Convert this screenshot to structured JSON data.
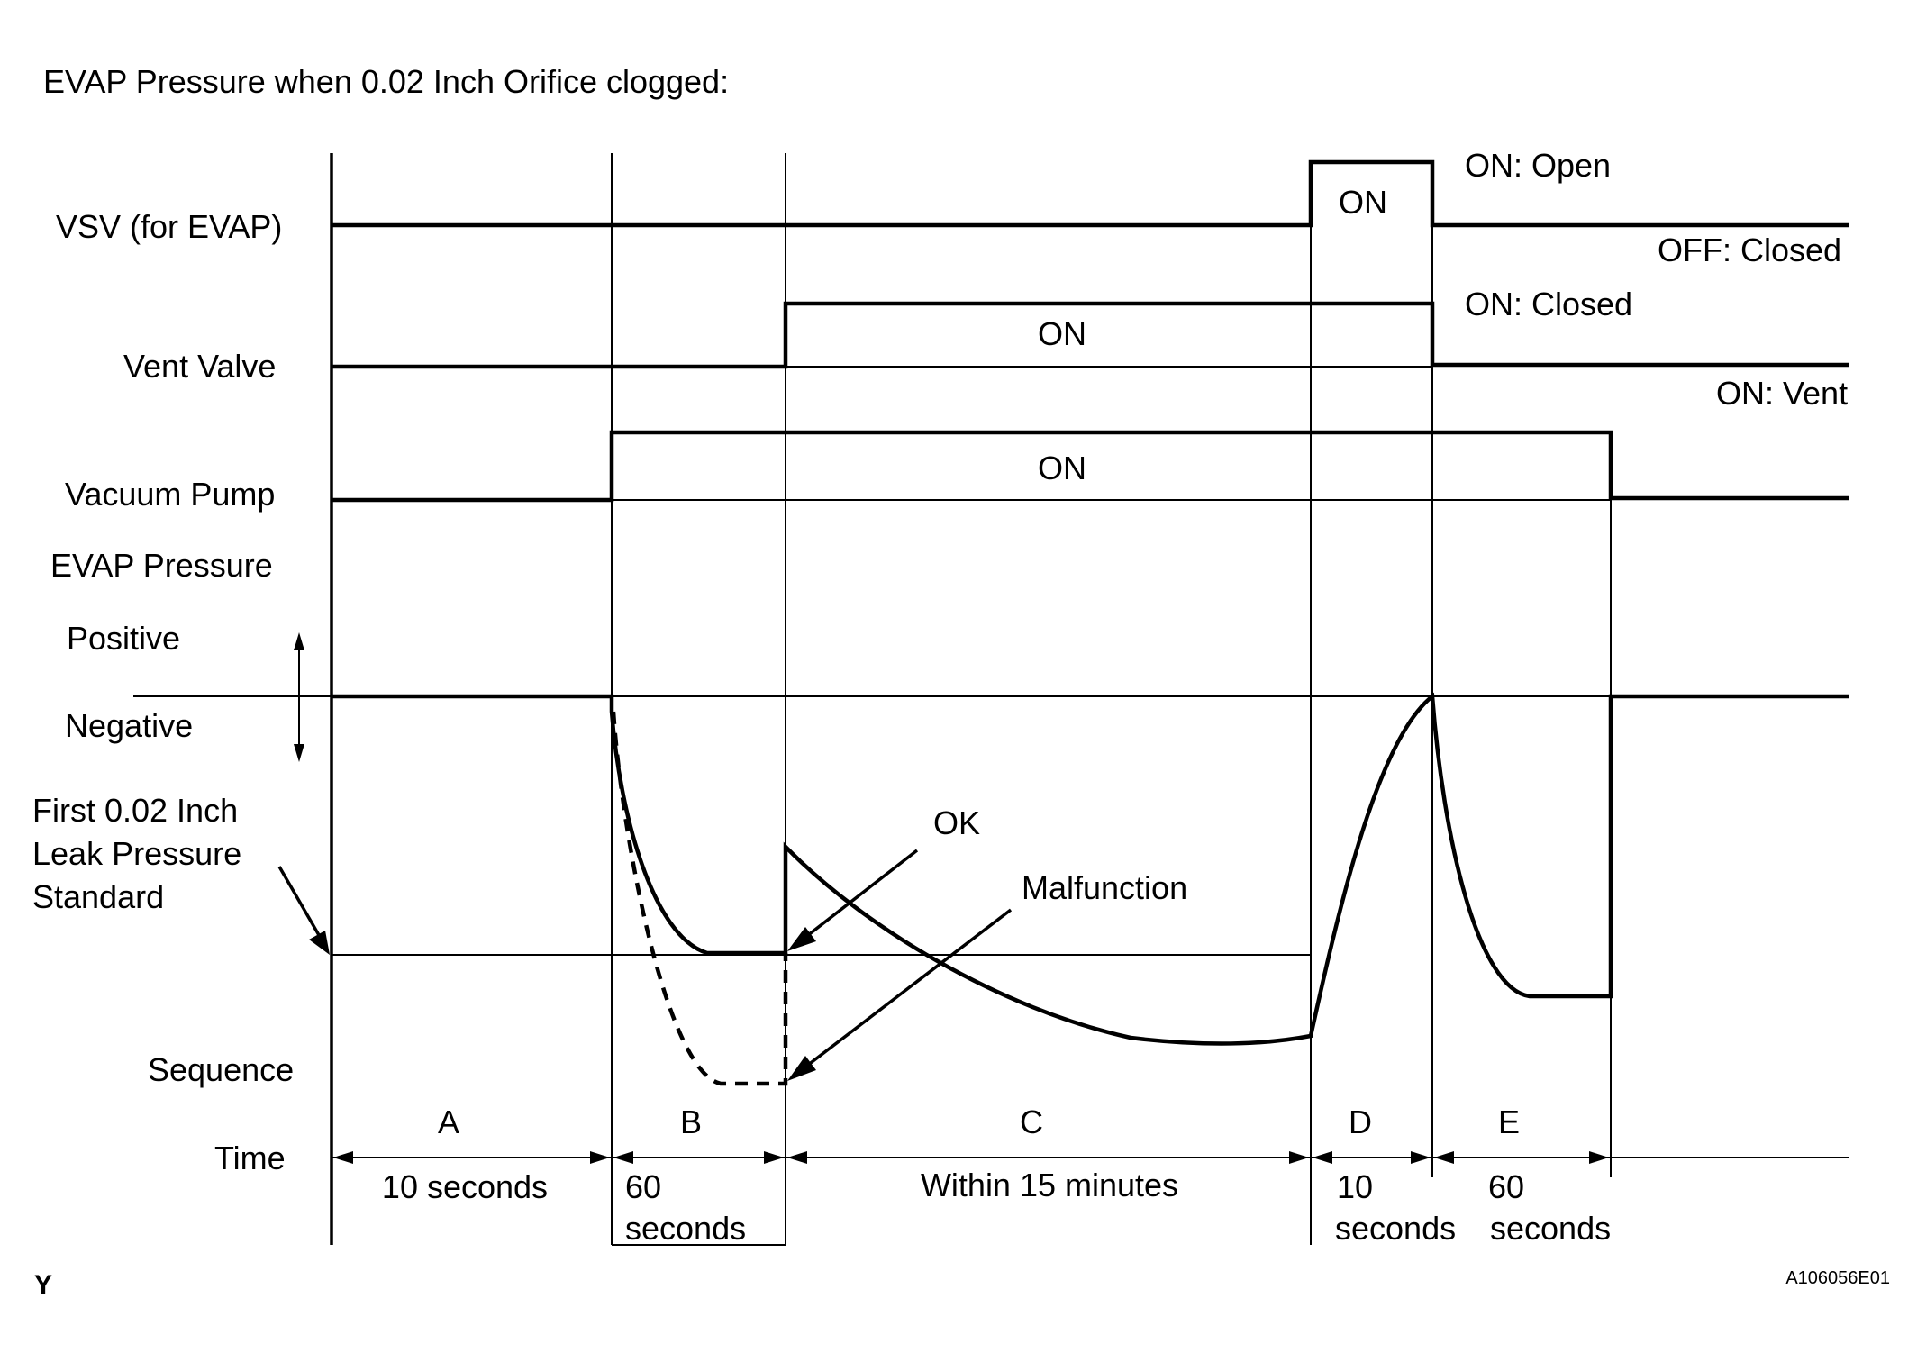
{
  "title": "EVAP Pressure when 0.02 Inch Orifice clogged:",
  "signals": {
    "vsv": {
      "label": "VSV (for EVAP)",
      "on_text": "ON",
      "on_state": "ON: Open",
      "off_state": "OFF: Closed"
    },
    "vent_valve": {
      "label": "Vent Valve",
      "on_text": "ON",
      "on_state": "ON: Closed",
      "off_state": "ON: Vent"
    },
    "vacuum_pump": {
      "label": "Vacuum Pump",
      "on_text": "ON"
    }
  },
  "evap_pressure": {
    "label": "EVAP Pressure",
    "positive": "Positive",
    "negative": "Negative",
    "standard_label": [
      "First 0.02 Inch",
      "Leak Pressure",
      "Standard"
    ],
    "ok_label": "OK",
    "malfunction_label": "Malfunction"
  },
  "sequence": {
    "label": "Sequence",
    "time_label": "Time",
    "phases": [
      {
        "id": "A",
        "duration": [
          "10 seconds"
        ]
      },
      {
        "id": "B",
        "duration": [
          "60",
          "seconds"
        ]
      },
      {
        "id": "C",
        "duration": [
          "Within 15 minutes"
        ]
      },
      {
        "id": "D",
        "duration": [
          "10",
          "seconds"
        ]
      },
      {
        "id": "E",
        "duration": [
          "60",
          "seconds"
        ]
      }
    ]
  },
  "corner_mark": "Y",
  "figure_code": "A106056E01"
}
